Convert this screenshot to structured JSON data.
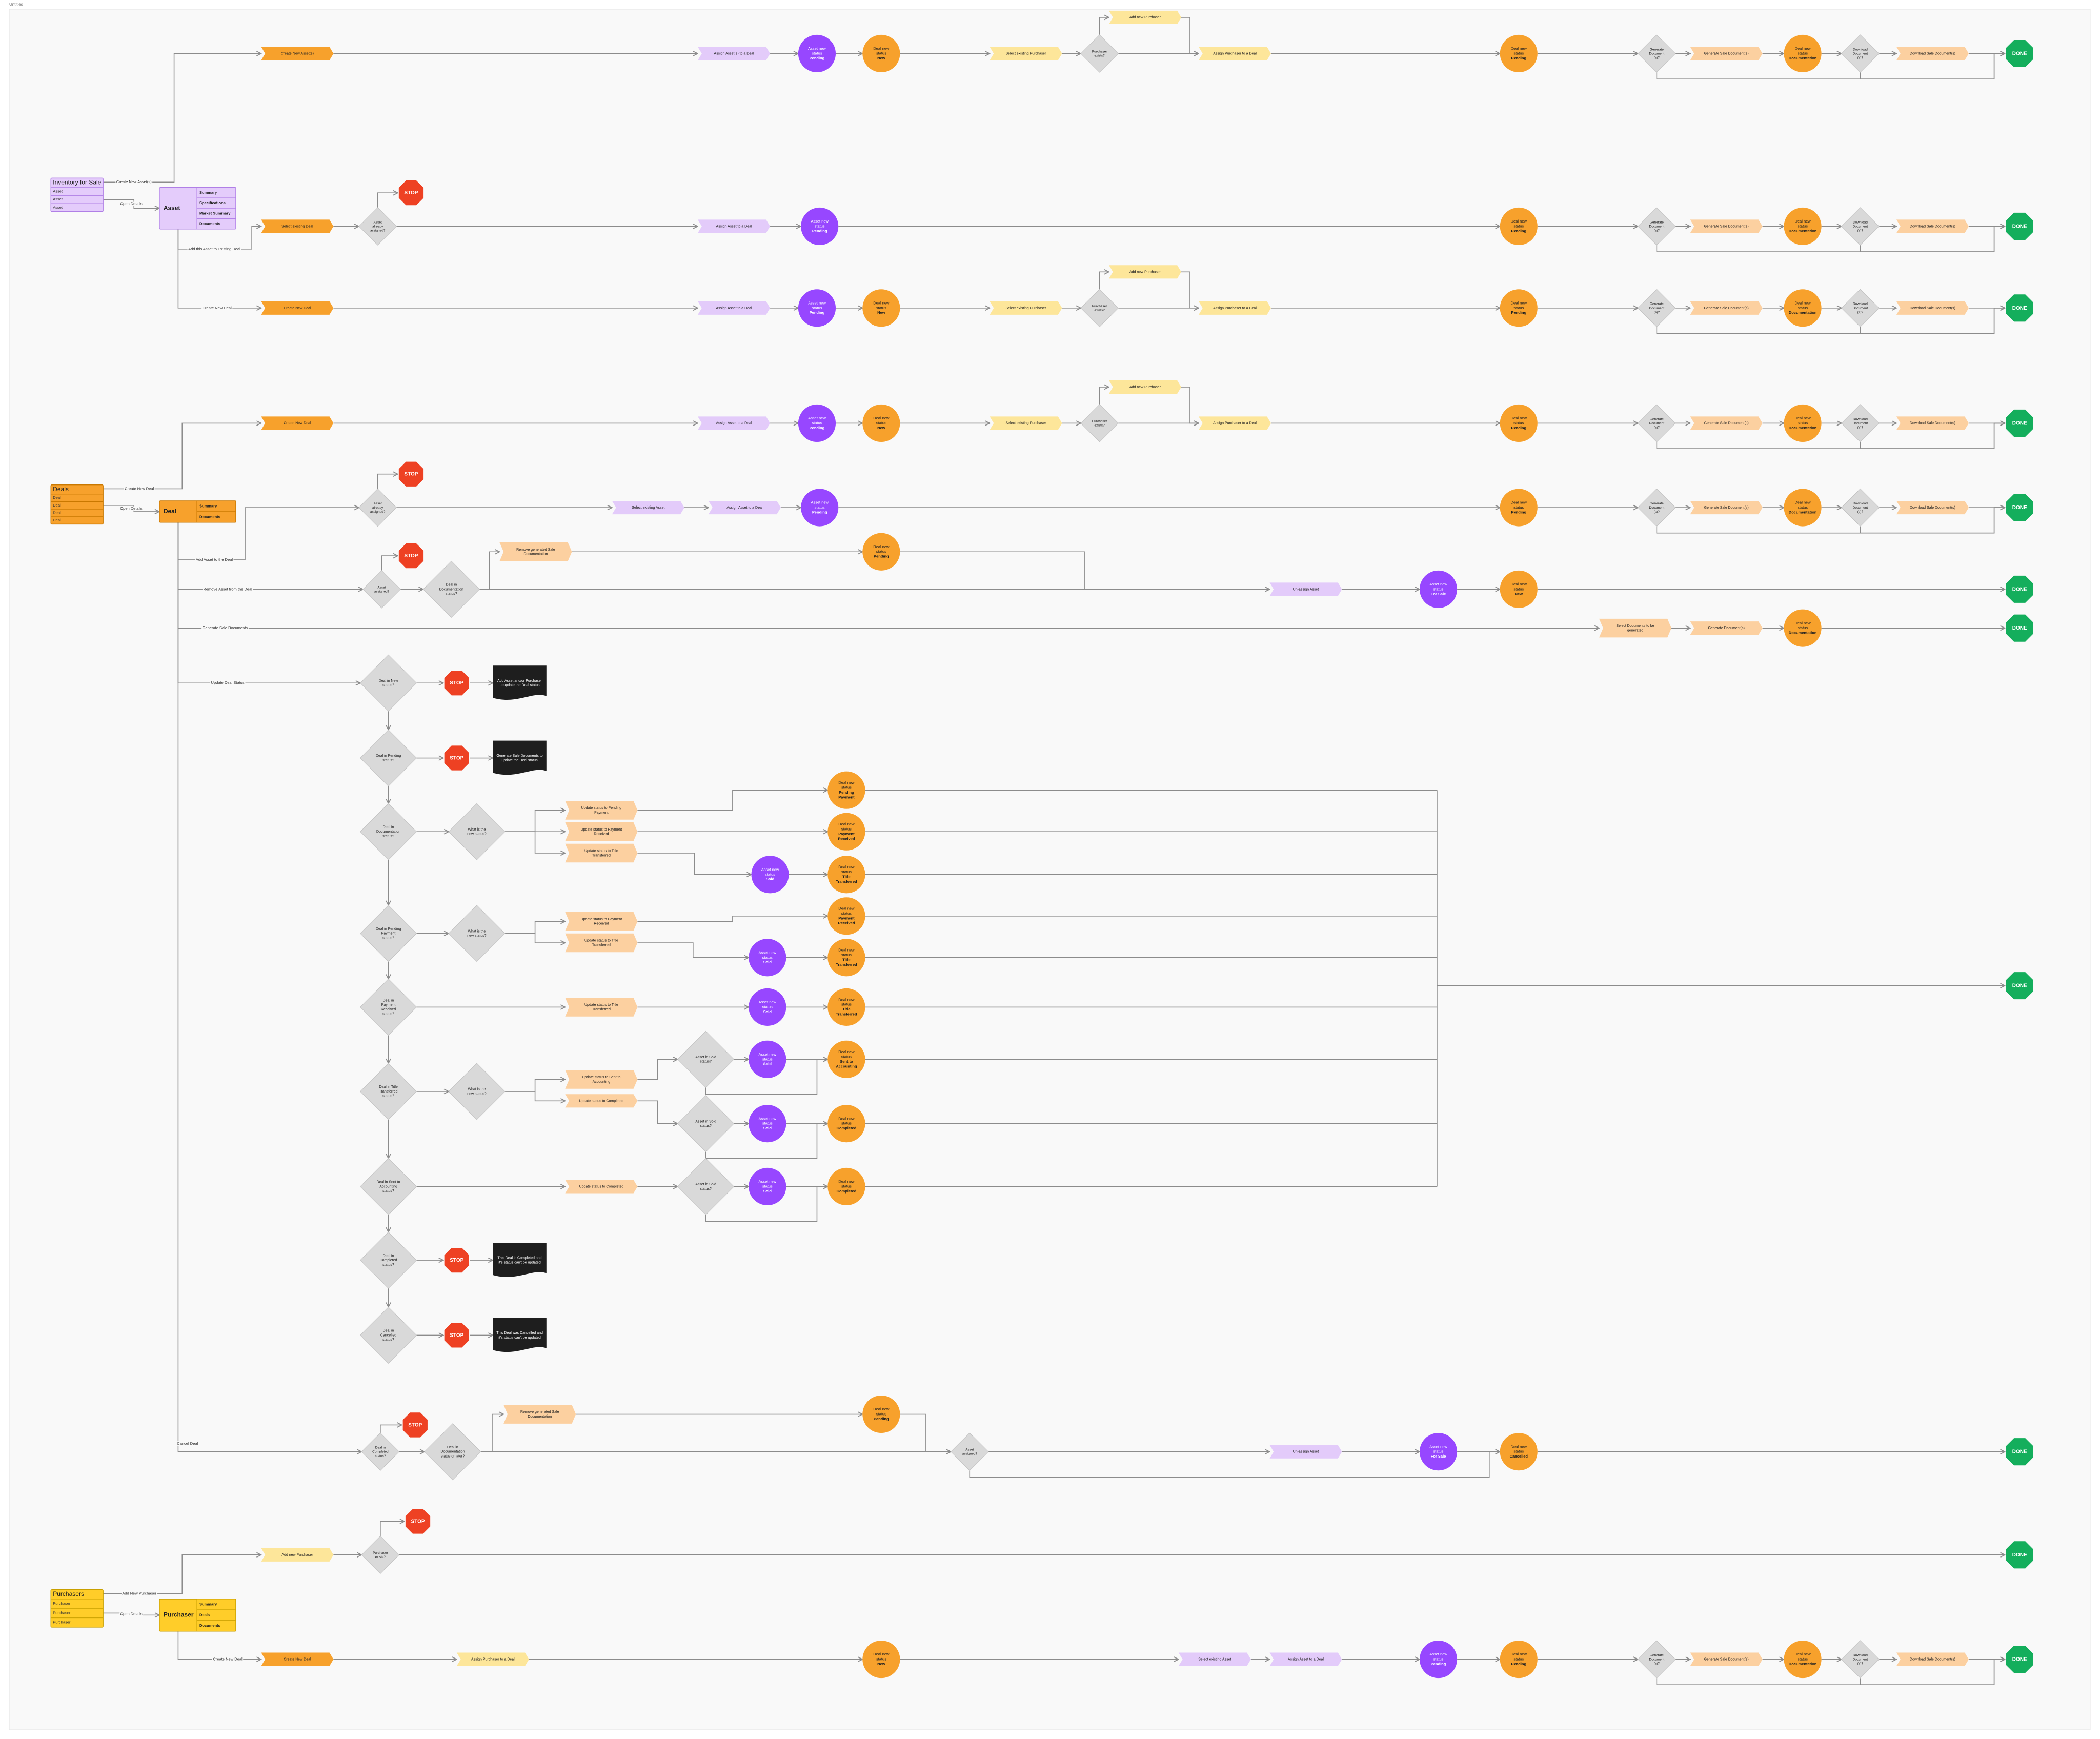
{
  "header": {
    "title": "Untitled"
  },
  "entities": [
    {
      "title": "Inventory for Sale",
      "items": [
        "Asset",
        "Asset",
        "Asset"
      ],
      "link": "Open Details",
      "card": {
        "title": "Asset",
        "tabs": [
          "Summary",
          "Specifications",
          "Market Summary",
          "Documents"
        ]
      }
    },
    {
      "title": "Deals",
      "items": [
        "Deal",
        "Deal",
        "Deal",
        "Deal"
      ],
      "link": "Open Details",
      "card": {
        "title": "Deal",
        "tabs": [
          "Summary",
          "Documents"
        ]
      }
    },
    {
      "title": "Purchasers",
      "items": [
        "Purchaser",
        "Purchaser",
        "Purchaser"
      ],
      "link": "Open Details",
      "card": {
        "title": "Purchaser",
        "tabs": [
          "Summary",
          "Deals",
          "Documents"
        ]
      }
    }
  ],
  "flows": [
    {
      "label": "Create New Asset(s)",
      "nodes": [
        {
          "lines": [
            "Create New Asset(s)"
          ]
        },
        {
          "lines": [
            "Assign Asset(s) to a Deal"
          ]
        },
        {
          "lines": [
            "Asset new",
            "status",
            "Pending"
          ]
        },
        {
          "lines": [
            "Deal new",
            "status",
            "New"
          ]
        },
        {
          "lines": [
            "Select existing Purchaser"
          ]
        },
        {
          "lines": [
            "Purchaser",
            "exists?"
          ]
        },
        {
          "lines": [
            "Add new Purchaser"
          ]
        },
        {
          "lines": [
            "Assign Purchaser to a Deal"
          ]
        },
        {
          "lines": [
            "Deal new",
            "status",
            "Pending"
          ]
        },
        {
          "lines": [
            "Generate",
            "Document",
            "(s)?"
          ]
        },
        {
          "lines": [
            "Generate Sale Document(s)"
          ]
        },
        {
          "lines": [
            "Deal new",
            "status",
            "Documentation"
          ]
        },
        {
          "lines": [
            "Download",
            "Document",
            "(s)?"
          ]
        },
        {
          "lines": [
            "Download Sale Document(s)"
          ]
        },
        {
          "lines": [
            "DONE"
          ]
        }
      ]
    },
    {
      "label": "Add this Asset to Existing Deal",
      "nodes": [
        {
          "lines": [
            "Select existing Deal"
          ]
        },
        {
          "lines": [
            "Asset",
            "already",
            "assigned?"
          ]
        },
        {
          "lines": [
            "STOP"
          ]
        },
        {
          "lines": [
            "Assign Asset to a Deal"
          ]
        },
        {
          "lines": [
            "Asset new",
            "status",
            "Pending"
          ]
        },
        {
          "lines": [
            "Deal new",
            "status",
            "Pending"
          ]
        },
        {
          "lines": [
            "Generate",
            "Document",
            "(s)?"
          ]
        },
        {
          "lines": [
            "Generate Sale Document(s)"
          ]
        },
        {
          "lines": [
            "Deal new",
            "status",
            "Documentation"
          ]
        },
        {
          "lines": [
            "Download",
            "Document",
            "(s)?"
          ]
        },
        {
          "lines": [
            "Download Sale Document(s)"
          ]
        },
        {
          "lines": [
            "DONE"
          ]
        }
      ]
    },
    {
      "label": "Create New Deal",
      "nodes": [
        {
          "lines": [
            "Create New Deal"
          ]
        },
        {
          "lines": [
            "Assign Asset to a Deal"
          ]
        },
        {
          "lines": [
            "Asset new",
            "status",
            "Pending"
          ]
        },
        {
          "lines": [
            "Deal new",
            "status",
            "New"
          ]
        },
        {
          "lines": [
            "Select existing Purchaser"
          ]
        },
        {
          "lines": [
            "Purchaser",
            "exists?"
          ]
        },
        {
          "lines": [
            "Add new Purchaser"
          ]
        },
        {
          "lines": [
            "Assign Purchaser to a Deal"
          ]
        },
        {
          "lines": [
            "Deal new",
            "status",
            "Pending"
          ]
        },
        {
          "lines": [
            "Generate",
            "Document",
            "(s)?"
          ]
        },
        {
          "lines": [
            "Generate Sale Document(s)"
          ]
        },
        {
          "lines": [
            "Deal new",
            "status",
            "Documentation"
          ]
        },
        {
          "lines": [
            "Download",
            "Document",
            "(s)?"
          ]
        },
        {
          "lines": [
            "Download Sale Document(s)"
          ]
        },
        {
          "lines": [
            "DONE"
          ]
        }
      ]
    },
    {
      "label": "Create New Deal",
      "nodes": [
        {
          "lines": [
            "Create New Deal"
          ]
        },
        {
          "lines": [
            "Assign Asset to a Deal"
          ]
        },
        {
          "lines": [
            "Asset new",
            "status",
            "Pending"
          ]
        },
        {
          "lines": [
            "Deal new",
            "status",
            "New"
          ]
        },
        {
          "lines": [
            "Select existing Purchaser"
          ]
        },
        {
          "lines": [
            "Purchaser",
            "exists?"
          ]
        },
        {
          "lines": [
            "Add new Purchaser"
          ]
        },
        {
          "lines": [
            "Assign Purchaser to a Deal"
          ]
        },
        {
          "lines": [
            "Deal new",
            "status",
            "Pending"
          ]
        },
        {
          "lines": [
            "Generate",
            "Document",
            "(s)?"
          ]
        },
        {
          "lines": [
            "Generate Sale Document(s)"
          ]
        },
        {
          "lines": [
            "Deal new",
            "status",
            "Documentation"
          ]
        },
        {
          "lines": [
            "Download",
            "Document",
            "(s)?"
          ]
        },
        {
          "lines": [
            "Download Sale Document(s)"
          ]
        },
        {
          "lines": [
            "DONE"
          ]
        }
      ]
    },
    {
      "label": "Add Asset to the Deal",
      "nodes": [
        {
          "lines": [
            "Asset",
            "already",
            "assigned?"
          ]
        },
        {
          "lines": [
            "STOP"
          ]
        },
        {
          "lines": [
            "Select existing Asset"
          ]
        },
        {
          "lines": [
            "Assign Asset to a Deal"
          ]
        },
        {
          "lines": [
            "Asset new",
            "status",
            "Pending"
          ]
        },
        {
          "lines": [
            "Deal new",
            "status",
            "Pending"
          ]
        },
        {
          "lines": [
            "Generate",
            "Document",
            "(s)?"
          ]
        },
        {
          "lines": [
            "Generate Sale Document(s)"
          ]
        },
        {
          "lines": [
            "Deal new",
            "status",
            "Documentation"
          ]
        },
        {
          "lines": [
            "Download",
            "Document",
            "(s)?"
          ]
        },
        {
          "lines": [
            "Download Sale Document(s)"
          ]
        },
        {
          "lines": [
            "DONE"
          ]
        }
      ]
    },
    {
      "label": "Remove Asset from the Deal",
      "nodes": [
        {
          "lines": [
            "Asset",
            "assigned?"
          ]
        },
        {
          "lines": [
            "STOP"
          ]
        },
        {
          "lines": [
            "Deal in",
            "Documentation",
            "status?"
          ]
        },
        {
          "lines": [
            "Remove generated Sale",
            "Documentation"
          ]
        },
        {
          "lines": [
            "Deal new",
            "status",
            "Pending"
          ]
        },
        {
          "lines": [
            "Un-assign Asset"
          ]
        },
        {
          "lines": [
            "Asset new",
            "status",
            "For Sale"
          ]
        },
        {
          "lines": [
            "Deal new",
            "status",
            "New"
          ]
        },
        {
          "lines": [
            "DONE"
          ]
        }
      ]
    },
    {
      "label": "Generate Sale Documents",
      "nodes": [
        {
          "lines": [
            "Select Documents to be",
            "generated"
          ]
        },
        {
          "lines": [
            "Generate Document(s)"
          ]
        },
        {
          "lines": [
            "Deal new",
            "status",
            "Documentation"
          ]
        },
        {
          "lines": [
            "DONE"
          ]
        }
      ]
    },
    {
      "label": "Update Deal Status",
      "nodes": [
        {
          "lines": [
            "Deal in New",
            "status?"
          ]
        },
        {
          "lines": [
            "STOP"
          ]
        },
        {
          "lines": [
            "Add Asset and/or Purchaser",
            "to update the Deal status"
          ]
        },
        {
          "lines": [
            "Deal in Pending",
            "status?"
          ]
        },
        {
          "lines": [
            "STOP"
          ]
        },
        {
          "lines": [
            "Generate Sale Documents to",
            "update the Deal status"
          ]
        },
        {
          "lines": [
            "Deal in",
            "Documentation",
            "status?"
          ]
        },
        {
          "lines": [
            "What is the",
            "new status?"
          ]
        },
        {
          "lines": [
            "Update status to Pending",
            "Payment"
          ]
        },
        {
          "lines": [
            "Update status to Payment",
            "Received"
          ]
        },
        {
          "lines": [
            "Update status to Title",
            "Transferred"
          ]
        },
        {
          "lines": [
            "Deal new",
            "status",
            "Pending",
            "Payment"
          ]
        },
        {
          "lines": [
            "Deal new",
            "status",
            "Payment",
            "Received"
          ]
        },
        {
          "lines": [
            "Asset new",
            "status",
            "Sold"
          ]
        },
        {
          "lines": [
            "Deal new",
            "status",
            "Title",
            "Transferred"
          ]
        },
        {
          "lines": [
            "Deal in Pending",
            "Payment",
            "status?"
          ]
        },
        {
          "lines": [
            "What is the",
            "new status?"
          ]
        },
        {
          "lines": [
            "Update status to Payment",
            "Received"
          ]
        },
        {
          "lines": [
            "Update status to Title",
            "Transferred"
          ]
        },
        {
          "lines": [
            "Deal new",
            "status",
            "Payment",
            "Received"
          ]
        },
        {
          "lines": [
            "Asset new",
            "status",
            "Sold"
          ]
        },
        {
          "lines": [
            "Deal new",
            "status",
            "Title",
            "Transferred"
          ]
        },
        {
          "lines": [
            "Deal in",
            "Payment",
            "Received",
            "status?"
          ]
        },
        {
          "lines": [
            "Update status to Title",
            "Transferred"
          ]
        },
        {
          "lines": [
            "Asset new",
            "status",
            "Sold"
          ]
        },
        {
          "lines": [
            "Deal new",
            "status",
            "Title",
            "Transferred"
          ]
        },
        {
          "lines": [
            "Deal in Title",
            "Transferred",
            "status?"
          ]
        },
        {
          "lines": [
            "What is the",
            "new status?"
          ]
        },
        {
          "lines": [
            "Update status to Sent to",
            "Accounting"
          ]
        },
        {
          "lines": [
            "Update status to Completed"
          ]
        },
        {
          "lines": [
            "Asset in Sold",
            "status?"
          ]
        },
        {
          "lines": [
            "Asset new",
            "status",
            "Sold"
          ]
        },
        {
          "lines": [
            "Deal new",
            "status",
            "Sent to",
            "Accounting"
          ]
        },
        {
          "lines": [
            "Asset in Sold",
            "status?"
          ]
        },
        {
          "lines": [
            "Asset new",
            "status",
            "Sold"
          ]
        },
        {
          "lines": [
            "Deal new",
            "status",
            "Completed"
          ]
        },
        {
          "lines": [
            "Deal in Sent to",
            "Accounting",
            "status?"
          ]
        },
        {
          "lines": [
            "Update status to Completed"
          ]
        },
        {
          "lines": [
            "Asset in Sold",
            "status?"
          ]
        },
        {
          "lines": [
            "Asset new",
            "status",
            "Sold"
          ]
        },
        {
          "lines": [
            "Deal new",
            "status",
            "Completed"
          ]
        },
        {
          "lines": [
            "Deal in",
            "Completed",
            "status?"
          ]
        },
        {
          "lines": [
            "STOP"
          ]
        },
        {
          "lines": [
            "This Deal is Completed and",
            "it's status can't be updated"
          ]
        },
        {
          "lines": [
            "Deal in",
            "Cancelled",
            "status?"
          ]
        },
        {
          "lines": [
            "STOP"
          ]
        },
        {
          "lines": [
            "This Deal was Cancelled and",
            "it's status can't be updated"
          ]
        },
        {
          "lines": [
            "DONE"
          ]
        }
      ]
    },
    {
      "label": "Cancel Deal",
      "nodes": [
        {
          "lines": [
            "Deal in",
            "Completed",
            "status?"
          ]
        },
        {
          "lines": [
            "STOP"
          ]
        },
        {
          "lines": [
            "Deal in",
            "Documentation",
            "status or later?"
          ]
        },
        {
          "lines": [
            "Remove generated Sale",
            "Documentation"
          ]
        },
        {
          "lines": [
            "Deal new",
            "status",
            "Pending"
          ]
        },
        {
          "lines": [
            "Asset",
            "assigned?"
          ]
        },
        {
          "lines": [
            "Un-assign Asset"
          ]
        },
        {
          "lines": [
            "Asset new",
            "status",
            "For Sale"
          ]
        },
        {
          "lines": [
            "Deal new",
            "status",
            "Cancelled"
          ]
        },
        {
          "lines": [
            "DONE"
          ]
        }
      ]
    },
    {
      "label": "Add New Purchaser",
      "nodes": [
        {
          "lines": [
            "Add new Purchaser"
          ]
        },
        {
          "lines": [
            "Purchaser",
            "exists?"
          ]
        },
        {
          "lines": [
            "STOP"
          ]
        },
        {
          "lines": [
            "DONE"
          ]
        }
      ]
    },
    {
      "label": "Create New Deal",
      "nodes": [
        {
          "lines": [
            "Create New Deal"
          ]
        },
        {
          "lines": [
            "Assign Purchaser to a Deal"
          ]
        },
        {
          "lines": [
            "Deal new",
            "status",
            "New"
          ]
        },
        {
          "lines": [
            "Select existing Asset"
          ]
        },
        {
          "lines": [
            "Assign Asset to a Deal"
          ]
        },
        {
          "lines": [
            "Asset new",
            "status",
            "Pending"
          ]
        },
        {
          "lines": [
            "Deal new",
            "status",
            "Pending"
          ]
        },
        {
          "lines": [
            "Generate",
            "Document",
            "(s)?"
          ]
        },
        {
          "lines": [
            "Generate Sale Document(s)"
          ]
        },
        {
          "lines": [
            "Deal new",
            "status",
            "Documentation"
          ]
        },
        {
          "lines": [
            "Download",
            "Document",
            "(s)?"
          ]
        },
        {
          "lines": [
            "Download Sale Document(s)"
          ]
        },
        {
          "lines": [
            "DONE"
          ]
        }
      ]
    }
  ]
}
